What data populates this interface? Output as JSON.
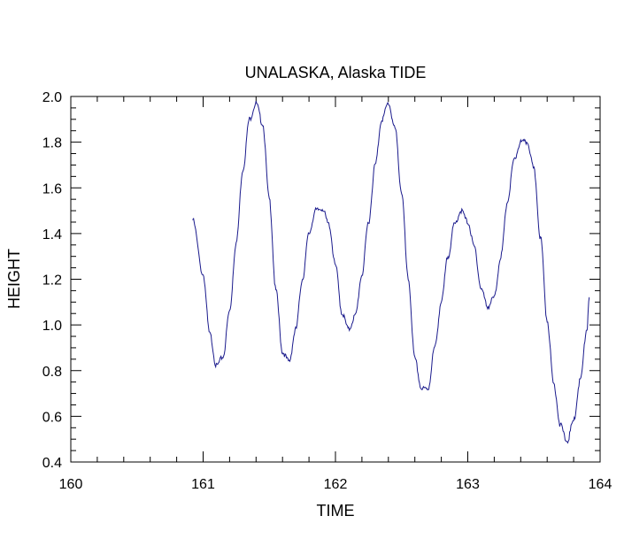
{
  "chart_data": {
    "type": "line",
    "title": "UNALASKA, Alaska TIDE",
    "xlabel": "TIME",
    "ylabel": "HEIGHT",
    "xlim": [
      160,
      164
    ],
    "ylim": [
      0.4,
      2.0
    ],
    "x_ticks": [
      "160",
      "161",
      "162",
      "163",
      "164"
    ],
    "y_ticks": [
      "0.4",
      "0.6",
      "0.8",
      "1.0",
      "1.2",
      "1.4",
      "1.6",
      "1.8",
      "2.0"
    ],
    "grid": false,
    "line_color": "#1a1a8c",
    "series": [
      {
        "x": [
          160.92,
          161.0,
          161.05,
          161.1,
          161.15,
          161.2,
          161.25,
          161.3,
          161.35,
          161.4,
          161.45,
          161.5,
          161.55,
          161.6,
          161.65,
          161.7,
          161.75,
          161.8,
          161.85,
          161.9,
          161.95,
          162.0,
          162.05,
          162.1,
          162.15,
          162.2,
          162.25,
          162.3,
          162.35,
          162.4,
          162.45,
          162.5,
          162.55,
          162.6,
          162.65,
          162.7,
          162.75,
          162.8,
          162.85,
          162.9,
          162.95,
          163.0,
          163.05,
          163.1,
          163.15,
          163.2,
          163.25,
          163.3,
          163.35,
          163.4,
          163.45,
          163.5,
          163.55,
          163.6,
          163.65,
          163.7,
          163.75,
          163.8,
          163.85,
          163.9,
          163.92
        ],
        "y": [
          1.46,
          1.22,
          0.96,
          0.82,
          0.86,
          1.06,
          1.36,
          1.68,
          1.9,
          1.97,
          1.88,
          1.55,
          1.15,
          0.88,
          0.84,
          0.98,
          1.2,
          1.4,
          1.5,
          1.51,
          1.44,
          1.26,
          1.05,
          0.98,
          1.04,
          1.22,
          1.45,
          1.7,
          1.9,
          1.97,
          1.86,
          1.58,
          1.2,
          0.85,
          0.72,
          0.72,
          0.9,
          1.1,
          1.3,
          1.44,
          1.5,
          1.45,
          1.34,
          1.16,
          1.08,
          1.12,
          1.3,
          1.54,
          1.72,
          1.8,
          1.8,
          1.68,
          1.38,
          1.02,
          0.74,
          0.56,
          0.49,
          0.58,
          0.76,
          0.98,
          1.12
        ]
      }
    ]
  }
}
